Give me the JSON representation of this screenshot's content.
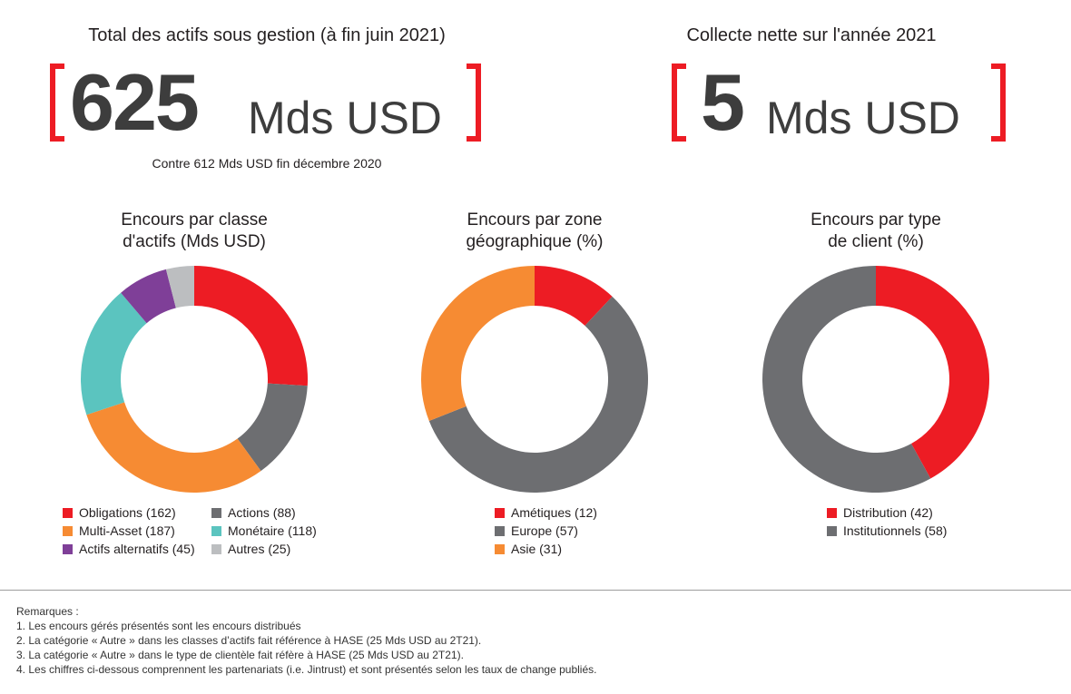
{
  "kpis": [
    {
      "title": "Total des actifs sous gestion (à fin juin 2021)",
      "value": "625",
      "unit": "Mds USD",
      "subtitle": "Contre 612 Mds USD fin décembre 2020"
    },
    {
      "title": "Collecte nette sur l'année 2021",
      "value": "5",
      "unit": "Mds USD"
    }
  ],
  "colors": {
    "red": "#ed1c24",
    "gray": "#6d6e71",
    "orange": "#f68b33",
    "teal": "#5bc4bf",
    "purple": "#7f3f98",
    "lightgray": "#bcbec0"
  },
  "chart_data": [
    {
      "type": "pie",
      "donut": true,
      "title_line1": "Encours par classe",
      "title_line2": "d'actifs (Mds USD)",
      "slices": [
        {
          "label": "Obligations (162)",
          "value": 162,
          "color": "#ed1c24"
        },
        {
          "label": "Actions (88)",
          "value": 88,
          "color": "#6d6e71"
        },
        {
          "label": "Multi-Asset (187)",
          "value": 187,
          "color": "#f68b33"
        },
        {
          "label": "Monétaire (118)",
          "value": 118,
          "color": "#5bc4bf"
        },
        {
          "label": "Actifs alternatifs (45)",
          "value": 45,
          "color": "#7f3f98"
        },
        {
          "label": "Autres (25)",
          "value": 25,
          "color": "#bcbec0"
        }
      ]
    },
    {
      "type": "pie",
      "donut": true,
      "title_line1": "Encours par zone",
      "title_line2": "géographique (%)",
      "slices": [
        {
          "label": "Amétiques (12)",
          "value": 12,
          "color": "#ed1c24"
        },
        {
          "label": "Europe (57)",
          "value": 57,
          "color": "#6d6e71"
        },
        {
          "label": "Asie (31)",
          "value": 31,
          "color": "#f68b33"
        }
      ]
    },
    {
      "type": "pie",
      "donut": true,
      "title_line1": "Encours par type",
      "title_line2": "de client (%)",
      "slices": [
        {
          "label": "Distribution (42)",
          "value": 42,
          "color": "#ed1c24"
        },
        {
          "label": "Institutionnels (58)",
          "value": 58,
          "color": "#6d6e71"
        }
      ]
    }
  ],
  "notes": {
    "heading": "Remarques :",
    "items": [
      "1. Les encours gérés présentés sont les encours distribués",
      "2. La catégorie « Autre » dans les classes d’actifs fait référence à HASE (25 Mds USD au 2T21).",
      "3. La catégorie « Autre » dans le type de clientèle fait réfère à HASE (25 Mds USD au 2T21).",
      "4. Les chiffres ci-dessous comprennent les partenariats (i.e. Jintrust) et sont présentés selon les taux de change publiés."
    ]
  }
}
